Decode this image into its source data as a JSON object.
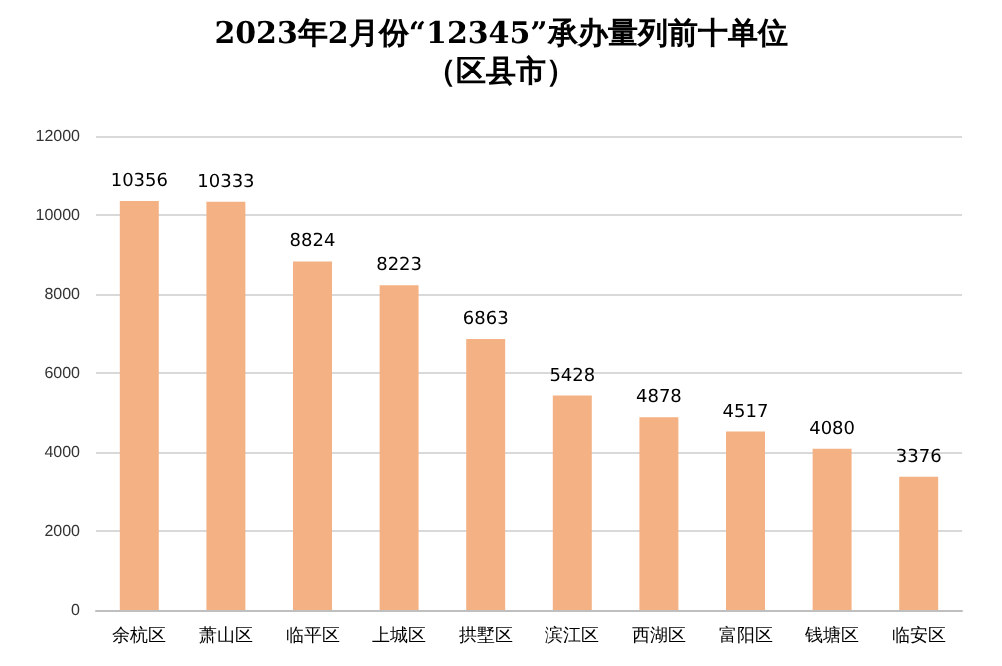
{
  "chart_data": {
    "type": "bar",
    "title": "2023年2月份“12345”承办量列前十单位",
    "subtitle": "（区县市）",
    "categories": [
      "余杭区",
      "萧山区",
      "临平区",
      "上城区",
      "拱墅区",
      "滨江区",
      "西湖区",
      "富阳区",
      "钱塘区",
      "临安区"
    ],
    "values": [
      10356,
      10333,
      8824,
      8223,
      6863,
      5428,
      4878,
      4517,
      4080,
      3376
    ],
    "color": "#f4b183",
    "ylim": [
      0,
      12000
    ],
    "yticks": [
      0,
      2000,
      4000,
      6000,
      8000,
      10000,
      12000
    ],
    "grid": "y",
    "data_labels": true
  }
}
